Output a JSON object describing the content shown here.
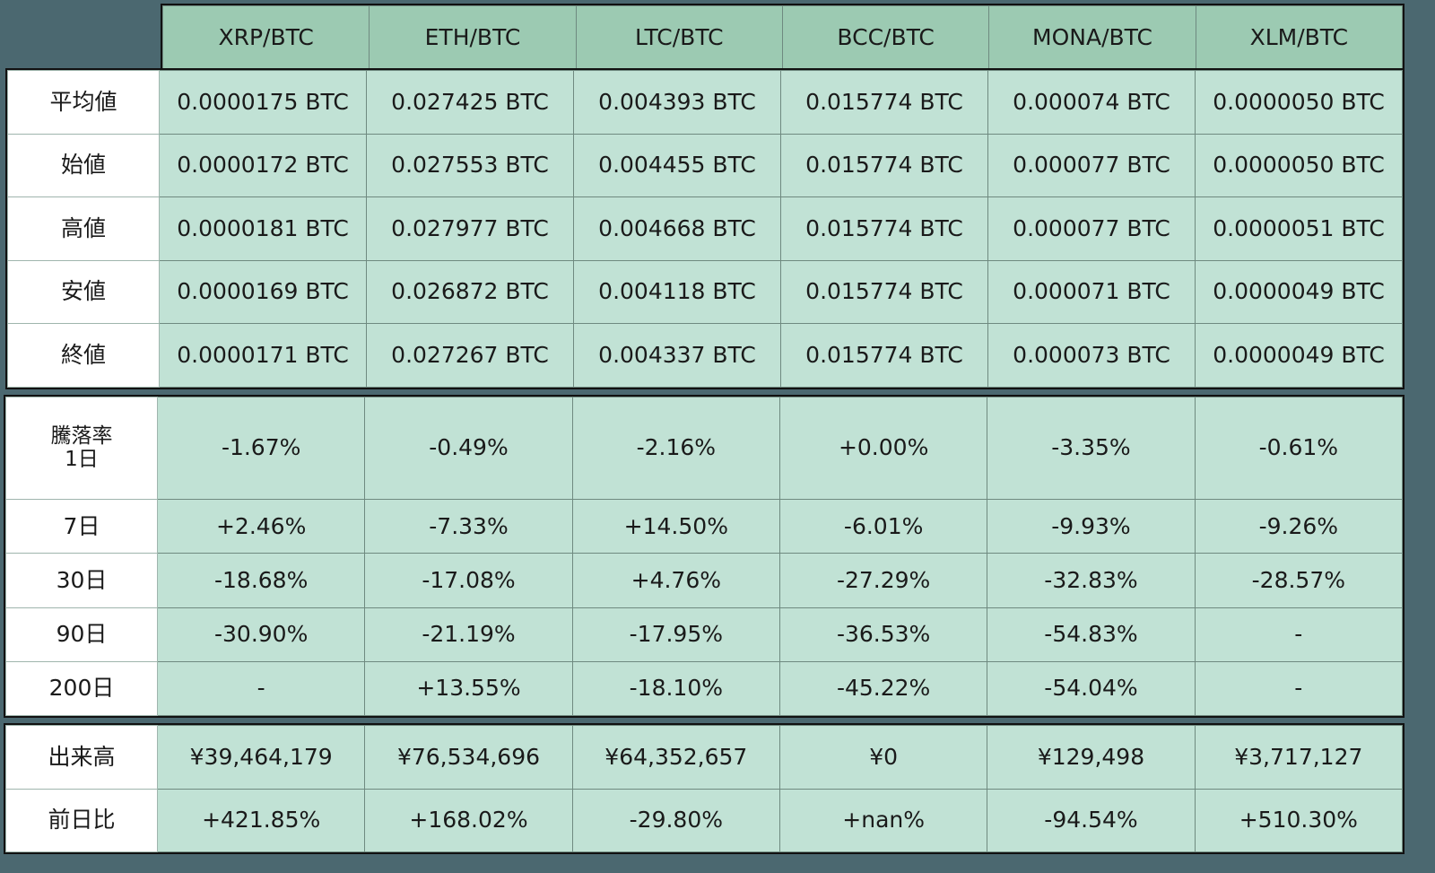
{
  "columns": [
    "XRP/BTC",
    "ETH/BTC",
    "LTC/BTC",
    "BCC/BTC",
    "MONA/BTC",
    "XLM/BTC"
  ],
  "price_section": {
    "rows": [
      {
        "label": "平均値",
        "values": [
          "0.0000175 BTC",
          "0.027425 BTC",
          "0.004393 BTC",
          "0.015774 BTC",
          "0.000074 BTC",
          "0.0000050 BTC"
        ]
      },
      {
        "label": "始値",
        "values": [
          "0.0000172 BTC",
          "0.027553 BTC",
          "0.004455 BTC",
          "0.015774 BTC",
          "0.000077 BTC",
          "0.0000050 BTC"
        ]
      },
      {
        "label": "高値",
        "values": [
          "0.0000181 BTC",
          "0.027977 BTC",
          "0.004668 BTC",
          "0.015774 BTC",
          "0.000077 BTC",
          "0.0000051 BTC"
        ]
      },
      {
        "label": "安値",
        "values": [
          "0.0000169 BTC",
          "0.026872 BTC",
          "0.004118 BTC",
          "0.015774 BTC",
          "0.000071 BTC",
          "0.0000049 BTC"
        ]
      },
      {
        "label": "終値",
        "values": [
          "0.0000171 BTC",
          "0.027267 BTC",
          "0.004337 BTC",
          "0.015774 BTC",
          "0.000073 BTC",
          "0.0000049 BTC"
        ]
      }
    ]
  },
  "change_section": {
    "title": "騰落率",
    "rows": [
      {
        "label": "1日",
        "values": [
          "-1.67%",
          "-0.49%",
          "-2.16%",
          "+0.00%",
          "-3.35%",
          "-0.61%"
        ]
      },
      {
        "label": "7日",
        "values": [
          "+2.46%",
          "-7.33%",
          "+14.50%",
          "-6.01%",
          "-9.93%",
          "-9.26%"
        ]
      },
      {
        "label": "30日",
        "values": [
          "-18.68%",
          "-17.08%",
          "+4.76%",
          "-27.29%",
          "-32.83%",
          "-28.57%"
        ]
      },
      {
        "label": "90日",
        "values": [
          "-30.90%",
          "-21.19%",
          "-17.95%",
          "-36.53%",
          "-54.83%",
          "-"
        ]
      },
      {
        "label": "200日",
        "values": [
          "-",
          "+13.55%",
          "-18.10%",
          "-45.22%",
          "-54.04%",
          "-"
        ]
      }
    ]
  },
  "volume_section": {
    "rows": [
      {
        "label": "出来高",
        "values": [
          "¥39,464,179",
          "¥76,534,696",
          "¥64,352,657",
          "¥0",
          "¥129,498",
          "¥3,717,127"
        ]
      },
      {
        "label": "前日比",
        "values": [
          "+421.85%",
          "+168.02%",
          "-29.80%",
          "+nan%",
          "-94.54%",
          "+510.30%"
        ]
      }
    ]
  },
  "colors": {
    "background": "#4b6870",
    "header_fill": "#9ccab2",
    "cell_fill": "#c1e2d5",
    "label_fill": "#ffffff"
  }
}
